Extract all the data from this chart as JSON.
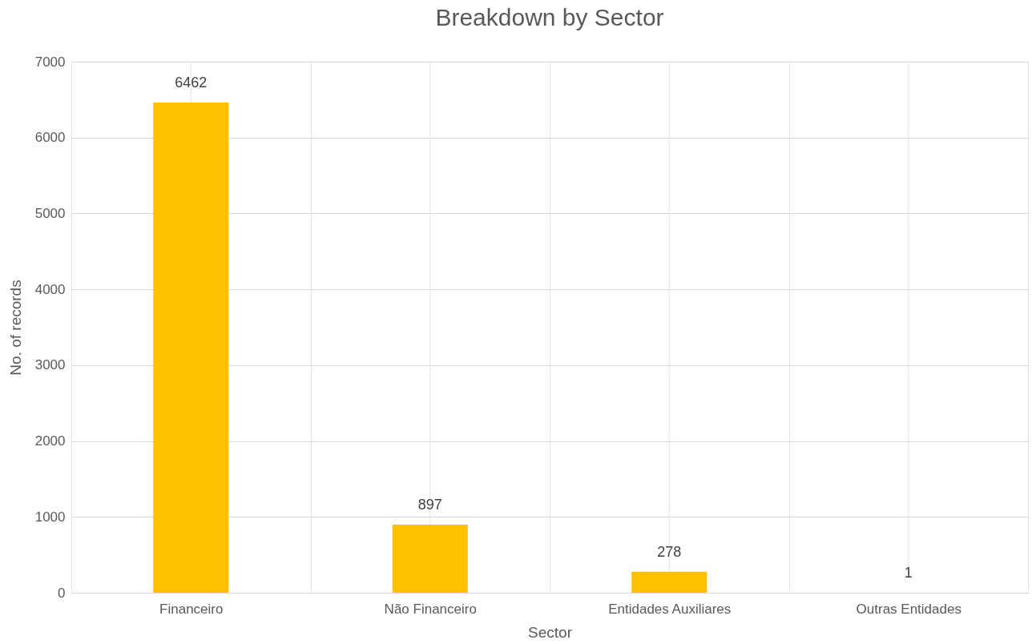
{
  "chart_data": {
    "type": "bar",
    "title": "Breakdown by Sector",
    "xlabel": "Sector",
    "ylabel": "No. of records",
    "categories": [
      "Financeiro",
      "Não Financeiro",
      "Entidades Auxiliares",
      "Outras Entidades"
    ],
    "values": [
      6462,
      897,
      278,
      1
    ],
    "color": "#ffc000",
    "ylim": [
      0,
      7000
    ],
    "yticks": [
      0,
      1000,
      2000,
      3000,
      4000,
      5000,
      6000,
      7000
    ],
    "grid": true,
    "data_labels": true
  }
}
